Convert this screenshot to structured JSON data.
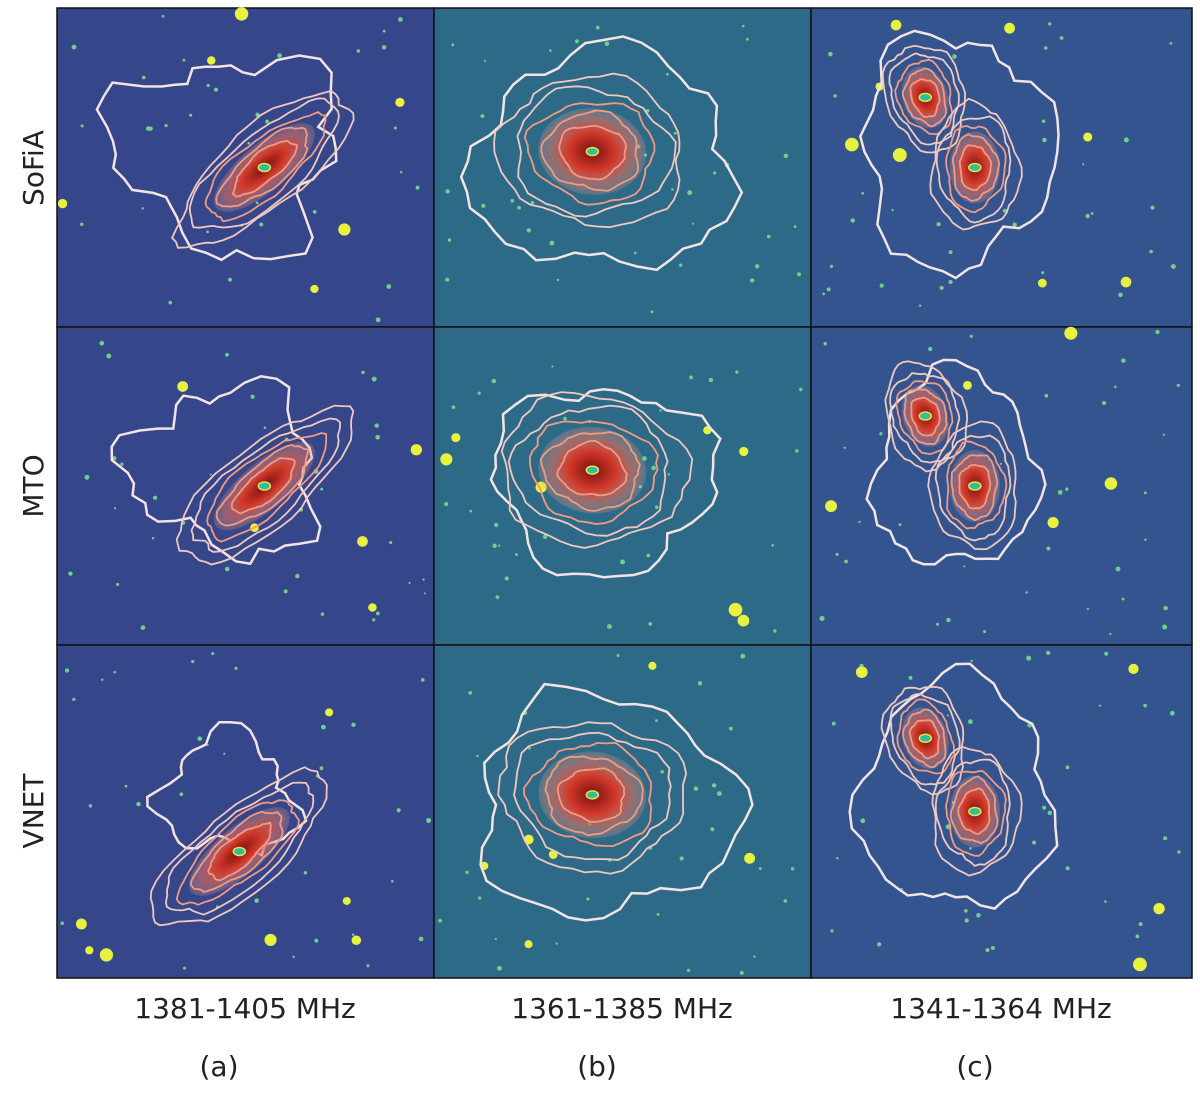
{
  "rows": [
    {
      "label": "SoFiA"
    },
    {
      "label": "MTO"
    },
    {
      "label": "VNET"
    }
  ],
  "columns": [
    {
      "range": "1381-1405 MHz",
      "tag": "(a)"
    },
    {
      "range": "1361-1385 MHz",
      "tag": "(b)"
    },
    {
      "range": "1341-1364 MHz",
      "tag": "(c)"
    }
  ]
}
